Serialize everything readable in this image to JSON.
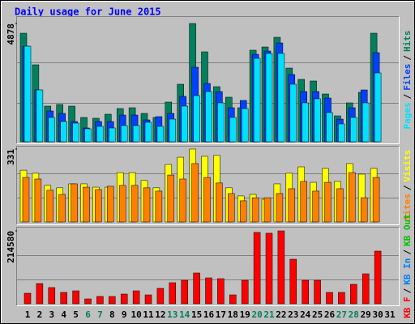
{
  "chart_data": [
    {
      "type": "bar",
      "title": "Daily usage for June 2015",
      "separator": "/",
      "ylim": [
        0,
        4878
      ],
      "yticks": [
        4878
      ],
      "series": [
        {
          "name": "Hits",
          "color": "#00805c",
          "values": [
            4477,
            3174,
            1470,
            1537,
            1470,
            1002,
            969,
            1136,
            1370,
            1403,
            1169,
            1002,
            1637,
            2372,
            4878,
            3709,
            2272,
            1838,
            1403,
            3776,
            3909,
            4310,
            3040,
            2573,
            2506,
            1971,
            1069,
            1604,
            2038,
            4477,
            null
          ]
        },
        {
          "name": "Files",
          "color": "#0040ff",
          "values": [
            3942,
            2138,
            1270,
            1169,
            835,
            568,
            835,
            835,
            1102,
            1102,
            902,
            1036,
            1169,
            1871,
            3074,
            2405,
            2071,
            1403,
            1704,
            3608,
            3742,
            4076,
            2773,
            2071,
            2071,
            1804,
            935,
            1403,
            2138,
            3675,
            null
          ]
        },
        {
          "name": "Pages",
          "color": "#00e0ff",
          "values": [
            3942,
            2138,
            1002,
            835,
            768,
            535,
            635,
            568,
            668,
            668,
            802,
            635,
            935,
            1470,
            1904,
            2071,
            1604,
            1002,
            1370,
            3441,
            3642,
            3642,
            2372,
            1604,
            1771,
            1203,
            735,
            1002,
            1604,
            2840,
            null
          ]
        }
      ]
    },
    {
      "type": "bar",
      "separator": "/",
      "ylim": [
        0,
        331
      ],
      "yticks": [
        331
      ],
      "series": [
        {
          "name": "Visits",
          "color": "#ffff00",
          "values": [
            235,
            221,
            166,
            155,
            173,
            173,
            158,
            158,
            224,
            224,
            188,
            155,
            261,
            294,
            331,
            298,
            302,
            155,
            118,
            125,
            103,
            173,
            221,
            250,
            180,
            243,
            184,
            265,
            217,
            243,
            null
          ]
        },
        {
          "name": "Sites",
          "color": "#ff8000",
          "values": [
            202,
            195,
            144,
            125,
            173,
            158,
            147,
            162,
            166,
            166,
            155,
            140,
            213,
            195,
            265,
            202,
            177,
            129,
            96,
            110,
            110,
            129,
            151,
            184,
            140,
            180,
            151,
            224,
            110,
            202,
            null
          ]
        }
      ]
    },
    {
      "type": "bar",
      "separator": "/",
      "ylim": [
        0,
        214580
      ],
      "yticks": [
        214580
      ],
      "categories": [
        "1",
        "2",
        "3",
        "4",
        "5",
        "6",
        "7",
        "8",
        "9",
        "10",
        "11",
        "12",
        "13",
        "14",
        "15",
        "16",
        "17",
        "18",
        "19",
        "20",
        "21",
        "22",
        "23",
        "24",
        "25",
        "26",
        "27",
        "28",
        "29",
        "30",
        "31"
      ],
      "highlight_indices": [
        5,
        6,
        12,
        13,
        19,
        20,
        26,
        27
      ],
      "highlight_color": "#00805c",
      "series": [
        {
          "name": "KB Out",
          "color": "#00c000",
          "values": [
            null,
            null,
            null,
            null,
            null,
            null,
            null,
            null,
            null,
            null,
            null,
            null,
            null,
            null,
            null,
            null,
            null,
            null,
            null,
            null,
            null,
            null,
            null,
            null,
            null,
            null,
            null,
            null,
            null,
            null,
            null
          ]
        },
        {
          "name": "KB In",
          "color": "#0080ff",
          "values": [
            null,
            null,
            null,
            null,
            null,
            null,
            null,
            null,
            null,
            null,
            null,
            null,
            null,
            null,
            null,
            null,
            null,
            null,
            null,
            null,
            null,
            null,
            null,
            null,
            null,
            null,
            null,
            null,
            null,
            null,
            null
          ]
        },
        {
          "name": "KB F",
          "color": "#ff0000",
          "values": [
            31000,
            59600,
            47700,
            33400,
            38100,
            14300,
            21500,
            21500,
            28600,
            38100,
            26200,
            45300,
            62000,
            69100,
            90600,
            76300,
            73900,
            26200,
            69100,
            210000,
            207600,
            214580,
            131100,
            69100,
            69100,
            33400,
            33400,
            57200,
            88200,
            155000,
            null
          ]
        }
      ]
    }
  ]
}
